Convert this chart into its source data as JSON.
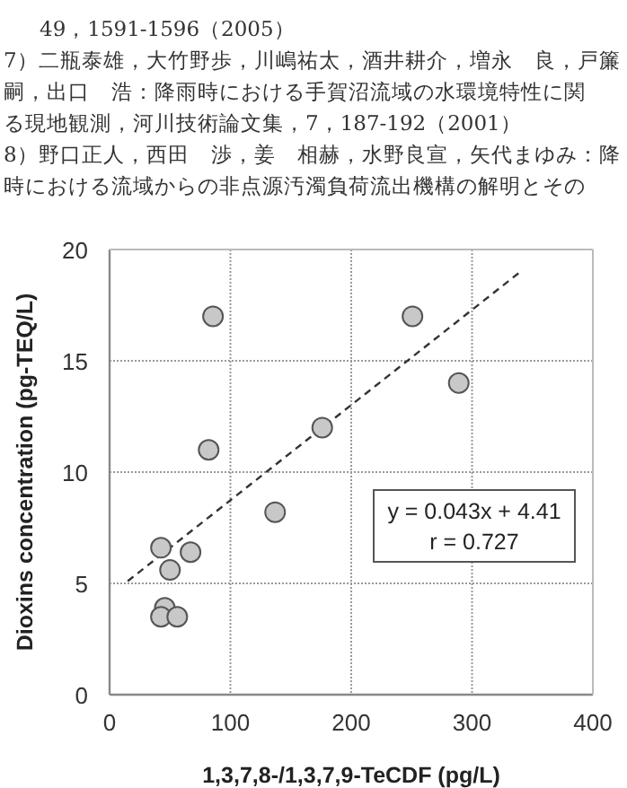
{
  "chart_data": {
    "type": "scatter",
    "xlabel": "1,3,7,8-/1,3,7,9-TeCDF (pg/L)",
    "ylabel": "Dioxins concentration (pg-TEQ/L)",
    "annotations": [
      "49，1591-1596（2005）",
      "7）二瓶泰雄，大竹野歩，川嶋祐太，酒井耕介，増永　良，戸簾",
      "嗣，出口　浩：降雨時における手賀沼流域の水環境特性に関",
      "る現地観測，河川技術論文集，7，187-192（2001）",
      "8）野口正人，西田　渉，姜　相赫，水野良宣，矢代まゆみ：降",
      "時における流域からの非点源汚濁負荷流出機構の解明とその",
      "y = 0.043x + 4.41",
      "r = 0.727"
    ],
    "series": [
      {
        "type": "scatter",
        "color": "#c8c8c8",
        "marker": "circle",
        "x": [
          85.6,
          250.7,
          289,
          176,
          82,
          137,
          42.5,
          67,
          50,
          45.7,
          42.5,
          56
        ],
        "values": [
          17.0,
          17.0,
          14.0,
          12.0,
          11.0,
          8.2,
          6.6,
          6.4,
          5.6,
          3.9,
          3.5,
          3.5
        ]
      },
      {
        "type": "line",
        "color": "#333333",
        "line_style": "dashed",
        "marker": "none",
        "x": [
          15,
          340
        ],
        "values": [
          5.1,
          19.0
        ]
      }
    ],
    "xlim": [
      0,
      400
    ],
    "xticks": [
      0,
      100,
      200,
      300,
      400
    ],
    "ylim": [
      0,
      20
    ],
    "yticks": [
      0,
      5,
      10,
      15,
      20
    ],
    "grid": true
  }
}
